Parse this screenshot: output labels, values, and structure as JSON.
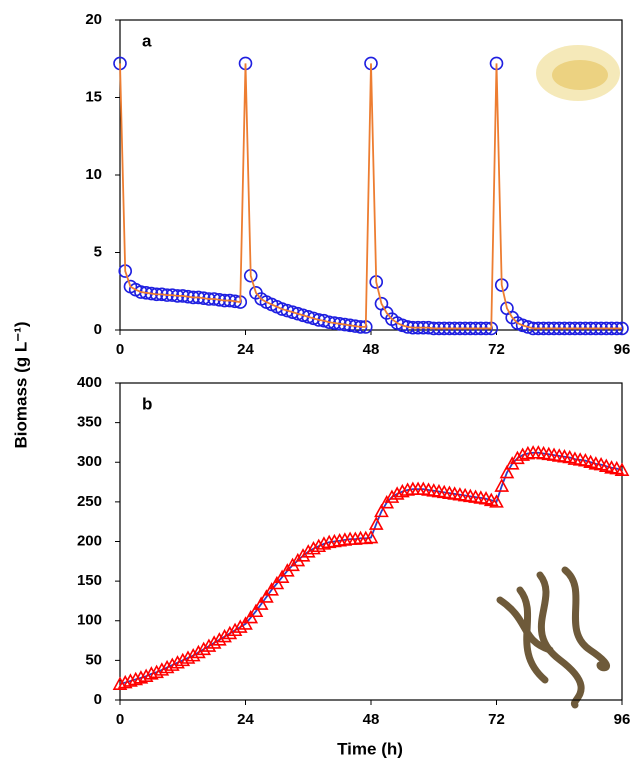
{
  "chart_data": [
    {
      "type": "line",
      "panel_label": "a",
      "ylabel": "Biomass (g L⁻¹)",
      "x": [
        0,
        1,
        2,
        3,
        4,
        5,
        6,
        7,
        8,
        9,
        10,
        11,
        12,
        13,
        14,
        15,
        16,
        17,
        18,
        19,
        20,
        21,
        22,
        23,
        24,
        25,
        26,
        27,
        28,
        29,
        30,
        31,
        32,
        33,
        34,
        35,
        36,
        37,
        38,
        39,
        40,
        41,
        42,
        43,
        44,
        45,
        46,
        47,
        48,
        49,
        50,
        51,
        52,
        53,
        54,
        55,
        56,
        57,
        58,
        59,
        60,
        61,
        62,
        63,
        64,
        65,
        66,
        67,
        68,
        69,
        70,
        71,
        72,
        73,
        74,
        75,
        76,
        77,
        78,
        79,
        80,
        81,
        82,
        83,
        84,
        85,
        86,
        87,
        88,
        89,
        90,
        91,
        92,
        93,
        94,
        95,
        96
      ],
      "series": [
        {
          "marker": "circle",
          "marker_color": "#1f1fe0",
          "line_color": "#ed7d31",
          "values": [
            17.2,
            3.8,
            2.8,
            2.6,
            2.45,
            2.4,
            2.35,
            2.3,
            2.3,
            2.25,
            2.25,
            2.2,
            2.2,
            2.15,
            2.1,
            2.1,
            2.05,
            2.0,
            2.0,
            1.95,
            1.9,
            1.9,
            1.85,
            1.8,
            17.2,
            3.5,
            2.4,
            2.0,
            1.8,
            1.65,
            1.5,
            1.35,
            1.25,
            1.15,
            1.05,
            0.95,
            0.85,
            0.75,
            0.65,
            0.6,
            0.5,
            0.45,
            0.4,
            0.35,
            0.3,
            0.25,
            0.2,
            0.2,
            17.2,
            3.1,
            1.7,
            1.1,
            0.7,
            0.45,
            0.3,
            0.2,
            0.15,
            0.15,
            0.15,
            0.15,
            0.1,
            0.1,
            0.1,
            0.1,
            0.1,
            0.1,
            0.1,
            0.1,
            0.1,
            0.1,
            0.1,
            0.1,
            17.2,
            2.9,
            1.4,
            0.8,
            0.45,
            0.3,
            0.2,
            0.1,
            0.1,
            0.1,
            0.1,
            0.1,
            0.1,
            0.1,
            0.1,
            0.1,
            0.1,
            0.1,
            0.1,
            0.1,
            0.1,
            0.1,
            0.1,
            0.1,
            0.1
          ]
        }
      ],
      "xlim": [
        0,
        96
      ],
      "xticks": [
        0,
        24,
        48,
        72,
        96
      ],
      "ylim": [
        0,
        20
      ],
      "yticks": [
        0,
        5,
        10,
        15,
        20
      ]
    },
    {
      "type": "line",
      "panel_label": "b",
      "xlabel": "Time (h)",
      "x": [
        0,
        1,
        2,
        3,
        4,
        5,
        6,
        7,
        8,
        9,
        10,
        11,
        12,
        13,
        14,
        15,
        16,
        17,
        18,
        19,
        20,
        21,
        22,
        23,
        24,
        25,
        26,
        27,
        28,
        29,
        30,
        31,
        32,
        33,
        34,
        35,
        36,
        37,
        38,
        39,
        40,
        41,
        42,
        43,
        44,
        45,
        46,
        47,
        48,
        49,
        50,
        51,
        52,
        53,
        54,
        55,
        56,
        57,
        58,
        59,
        60,
        61,
        62,
        63,
        64,
        65,
        66,
        67,
        68,
        69,
        70,
        71,
        72,
        73,
        74,
        75,
        76,
        77,
        78,
        79,
        80,
        81,
        82,
        83,
        84,
        85,
        86,
        87,
        88,
        89,
        90,
        91,
        92,
        93,
        94,
        95,
        96
      ],
      "series": [
        {
          "marker": "triangle",
          "marker_color": "#ff0000",
          "line_color": "#2b3fc8",
          "values": [
            20,
            22,
            24,
            26,
            28,
            30,
            33,
            35,
            38,
            41,
            44,
            47,
            50,
            53,
            56,
            60,
            64,
            68,
            72,
            76,
            80,
            84,
            88,
            92,
            96,
            104,
            112,
            121,
            130,
            139,
            147,
            155,
            163,
            170,
            176,
            182,
            187,
            191,
            194,
            197,
            199,
            200,
            201,
            202,
            203,
            203,
            204,
            204,
            205,
            222,
            238,
            249,
            256,
            260,
            263,
            265,
            266,
            266,
            266,
            265,
            264,
            263,
            262,
            261,
            260,
            259,
            258,
            257,
            256,
            255,
            254,
            252,
            250,
            270,
            287,
            298,
            305,
            309,
            311,
            312,
            312,
            311,
            310,
            309,
            308,
            307,
            306,
            304,
            303,
            302,
            300,
            298,
            297,
            295,
            293,
            292,
            290
          ]
        }
      ],
      "xlim": [
        0,
        96
      ],
      "xticks": [
        0,
        24,
        48,
        72,
        96
      ],
      "ylim": [
        0,
        400
      ],
      "yticks": [
        0,
        50,
        100,
        150,
        200,
        250,
        300,
        350,
        400
      ]
    }
  ]
}
